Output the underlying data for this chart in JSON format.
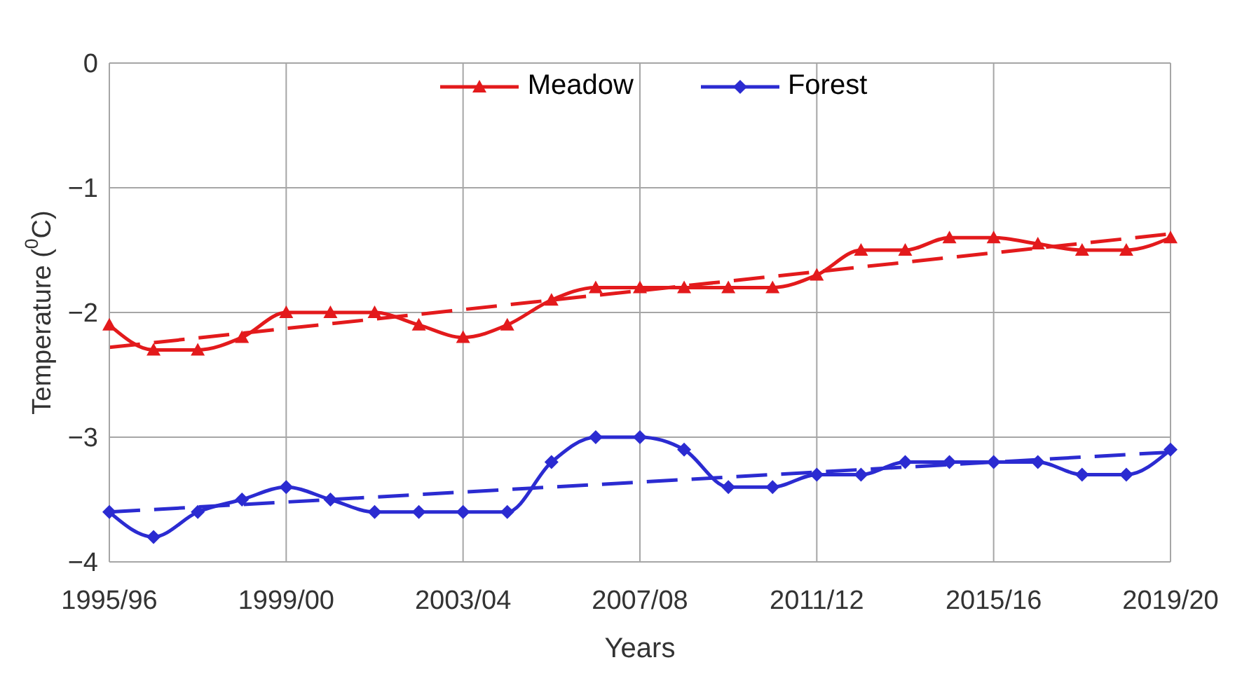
{
  "chart_data": {
    "type": "line",
    "xlabel": "Years",
    "ylabel": "Temperature ($^{0}$C)",
    "categories": [
      "1995/96",
      null,
      null,
      null,
      "1999/00",
      null,
      null,
      null,
      "2003/04",
      null,
      null,
      null,
      "2007/08",
      null,
      null,
      null,
      "2011/12",
      null,
      null,
      null,
      "2015/16",
      null,
      null,
      null,
      "2019/20"
    ],
    "series": [
      {
        "name": "Meadow",
        "color": "#e31a1c",
        "marker": "triangle",
        "line_style": "solid",
        "values": [
          -2.1,
          -2.3,
          -2.3,
          -2.2,
          -2.0,
          -2.0,
          -2.0,
          -2.1,
          -2.2,
          -2.1,
          -1.9,
          -1.8,
          -1.8,
          -1.8,
          -1.8,
          -1.8,
          -1.7,
          -1.5,
          -1.5,
          -1.4,
          -1.4,
          -1.45,
          -1.5,
          -1.5,
          -1.4
        ]
      },
      {
        "name": "Forest",
        "color": "#2b2bd1",
        "marker": "diamond",
        "line_style": "solid",
        "values": [
          -3.6,
          -3.8,
          -3.6,
          -3.5,
          -3.4,
          -3.5,
          -3.6,
          -3.6,
          -3.6,
          -3.6,
          -3.2,
          -3.0,
          -3.0,
          -3.1,
          -3.4,
          -3.4,
          -3.3,
          -3.3,
          -3.2,
          -3.2,
          -3.2,
          -3.2,
          -3.3,
          -3.3,
          -3.1
        ]
      },
      {
        "type": "line",
        "color": "#e31a1c",
        "marker": "none",
        "line_style": "dashed",
        "x": [
          "1995/96",
          "2019/20"
        ],
        "values": [
          -2.28,
          -1.37
        ]
      },
      {
        "type": "line",
        "color": "#2b2bd1",
        "marker": "none",
        "line_style": "dashed",
        "x": [
          "1995/96",
          "2019/20"
        ],
        "values": [
          -3.6,
          -3.12
        ]
      }
    ],
    "ylim": [
      -4,
      0
    ],
    "yticks": [
      -4,
      -3,
      -2,
      -1,
      0
    ],
    "grid": true,
    "legend": "top"
  }
}
